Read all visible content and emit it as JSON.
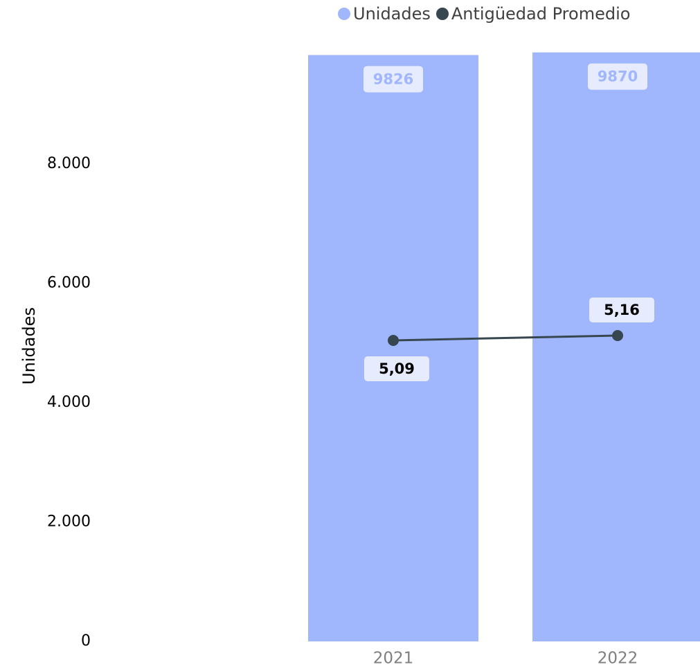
{
  "chart_data": {
    "type": "bar",
    "categories": [
      "2021",
      "2022"
    ],
    "series": [
      {
        "name": "Unidades",
        "type": "bar",
        "axis": "left",
        "values": [
          9826,
          9870
        ],
        "data_labels": [
          "9826",
          "9870"
        ],
        "color": "#a1b7fd"
      },
      {
        "name": "Antigüedad Promedio",
        "type": "line",
        "axis": "right",
        "values": [
          5.09,
          5.16
        ],
        "data_labels": [
          "5,09",
          "5,16"
        ],
        "color": "#37474f"
      }
    ],
    "ylabel": "Unidades",
    "ylim": [
      0,
      9826
    ],
    "y_ticks": [
      0,
      2000,
      4000,
      6000,
      8000
    ],
    "y_tick_labels": [
      "0",
      "2.000",
      "4.000",
      "6.000",
      "8.000"
    ],
    "grid": false,
    "legend_position": "top-right"
  },
  "colors": {
    "bar": "#a1b7fd",
    "line": "#37474f",
    "axis_text": "#000000",
    "category_text": "#7f7f7f",
    "bar_label_bg": "#e6ebfd",
    "bar_label_text": "#a1b7fd",
    "line_label_bg": "#e6ebfd",
    "line_label_text": "#000000"
  }
}
